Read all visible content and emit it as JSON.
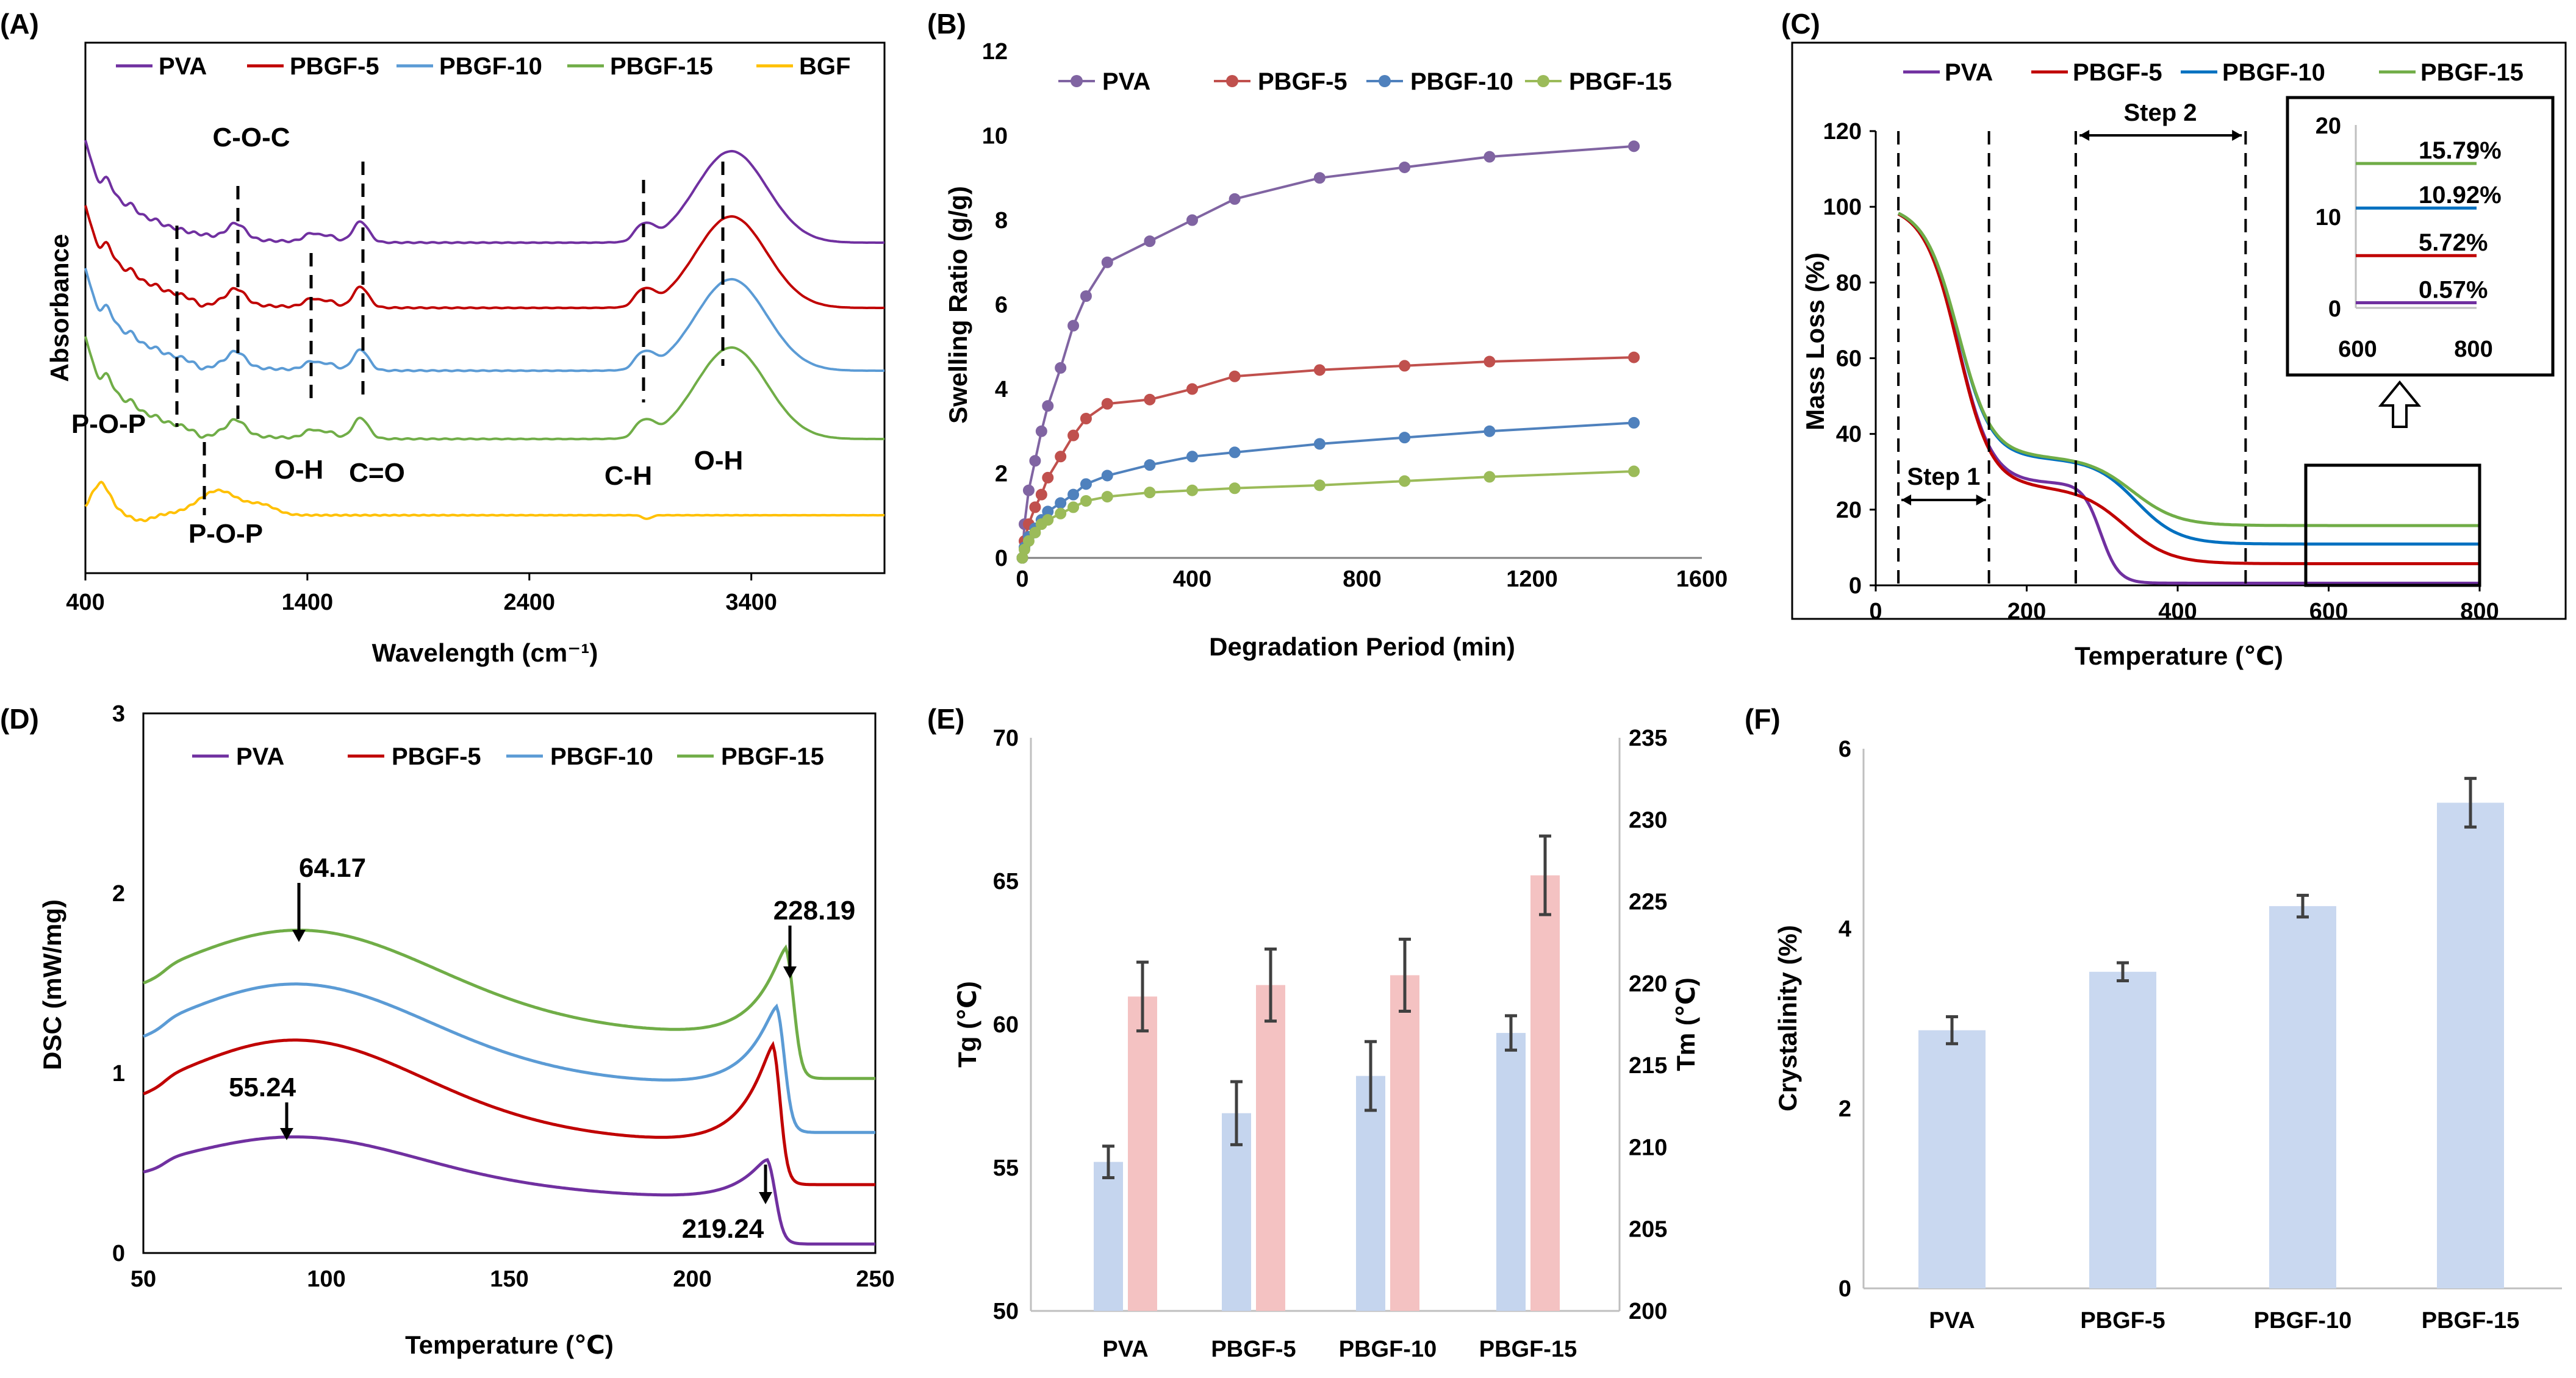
{
  "colors": {
    "PVA": "#7030A0",
    "PBGF-5": "#C00000",
    "PBGF-10": "#5B9BD5",
    "PBGF-15": "#70AD47",
    "BGF": "#FFC000",
    "B_PVA": "#8064A2",
    "B_PBGF-5": "#C0504D",
    "B_PBGF-10": "#4F81BD",
    "B_PBGF-15": "#9BBB59",
    "C_PBGF-10": "#0070C0",
    "bar_tg": "#C5D5EE",
    "bar_tm": "#F4C2C2",
    "bar_cr": "#C9D8F0"
  },
  "chart_data": [
    {
      "id": "A",
      "panel_label": "(A)",
      "type": "line",
      "title": "",
      "xlabel": "Wavelength (cm⁻¹)",
      "ylabel": "Absorbance",
      "xlim": [
        400,
        4000
      ],
      "xticks": [
        "400",
        "1400",
        "2400",
        "3400"
      ],
      "legend": [
        "PVA",
        "PBGF-5",
        "PBGF-10",
        "PBGF-15",
        "BGF"
      ],
      "annotations": [
        "C-O-C",
        "P-O-P",
        "O-H",
        "C=O",
        "C-H",
        "O-H",
        "P-O-P"
      ]
    },
    {
      "id": "B",
      "panel_label": "(B)",
      "type": "line",
      "title": "",
      "xlabel": "Degradation Period (min)",
      "ylabel": "Swelling Ratio (g/g)",
      "xlim": [
        0,
        1600
      ],
      "ylim": [
        0,
        12
      ],
      "xticks": [
        "0",
        "400",
        "800",
        "1200",
        "1600"
      ],
      "yticks": [
        "0",
        "2",
        "4",
        "6",
        "8",
        "10",
        "12"
      ],
      "x": [
        0,
        5,
        15,
        30,
        45,
        60,
        90,
        120,
        150,
        200,
        300,
        400,
        500,
        700,
        900,
        1100,
        1440
      ],
      "series": [
        {
          "name": "PVA",
          "values": [
            0,
            0.8,
            1.6,
            2.3,
            3.0,
            3.6,
            4.5,
            5.5,
            6.2,
            7.0,
            7.5,
            8.0,
            8.5,
            9.0,
            9.25,
            9.5,
            9.75
          ]
        },
        {
          "name": "PBGF-5",
          "values": [
            0,
            0.4,
            0.8,
            1.2,
            1.5,
            1.9,
            2.4,
            2.9,
            3.3,
            3.65,
            3.75,
            4.0,
            4.3,
            4.45,
            4.55,
            4.65,
            4.75
          ]
        },
        {
          "name": "PBGF-10",
          "values": [
            0,
            0.25,
            0.5,
            0.7,
            0.9,
            1.1,
            1.3,
            1.5,
            1.75,
            1.95,
            2.2,
            2.4,
            2.5,
            2.7,
            2.85,
            3.0,
            3.2
          ]
        },
        {
          "name": "PBGF-15",
          "values": [
            0,
            0.2,
            0.4,
            0.6,
            0.8,
            0.9,
            1.05,
            1.2,
            1.35,
            1.45,
            1.55,
            1.6,
            1.65,
            1.72,
            1.82,
            1.92,
            2.05
          ]
        }
      ]
    },
    {
      "id": "C",
      "panel_label": "(C)",
      "type": "line",
      "title": "",
      "xlabel": "Temperature (℃)",
      "ylabel": "Mass Loss (%)",
      "xlim": [
        0,
        800
      ],
      "ylim": [
        0,
        120
      ],
      "xticks": [
        "0",
        "200",
        "400",
        "600",
        "800"
      ],
      "yticks": [
        "0",
        "20",
        "40",
        "60",
        "80",
        "100",
        "120"
      ],
      "legend": [
        "PVA",
        "PBGF-5",
        "PBGF-10",
        "PBGF-15"
      ],
      "annotations": [
        "Step 1",
        "Step 2"
      ],
      "inset": {
        "xticks": [
          "600",
          "800"
        ],
        "yticks": [
          "0",
          "10",
          "20"
        ],
        "labels": [
          "15.79%",
          "10.92%",
          "5.72%",
          "0.57%"
        ],
        "values": [
          15.79,
          10.92,
          5.72,
          0.57
        ]
      }
    },
    {
      "id": "D",
      "panel_label": "(D)",
      "type": "line",
      "title": "",
      "xlabel": "Temperature (℃)",
      "ylabel": "DSC (mW/mg)",
      "xlim": [
        50,
        250
      ],
      "ylim": [
        0,
        3
      ],
      "xticks": [
        "50",
        "100",
        "150",
        "200",
        "250"
      ],
      "yticks": [
        "0",
        "1",
        "2",
        "3"
      ],
      "legend": [
        "PVA",
        "PBGF-5",
        "PBGF-10",
        "PBGF-15"
      ],
      "annotations": [
        "64.17",
        "228.19",
        "55.24",
        "219.24"
      ]
    },
    {
      "id": "E",
      "panel_label": "(E)",
      "type": "bar",
      "title": "",
      "ylabel": "Tg (℃)",
      "ylabel2": "Tm (℃)",
      "categories": [
        "PVA",
        "PBGF-5",
        "PBGF-10",
        "PBGF-15"
      ],
      "ylim": [
        50,
        70
      ],
      "ylim2": [
        200,
        235
      ],
      "yticks": [
        "50",
        "55",
        "60",
        "65",
        "70"
      ],
      "yticks2": [
        "200",
        "205",
        "210",
        "215",
        "220",
        "225",
        "230",
        "235"
      ],
      "series": [
        {
          "name": "Tg",
          "values": [
            55.2,
            56.9,
            58.2,
            59.7
          ],
          "err": [
            0.55,
            1.1,
            1.2,
            0.6
          ]
        },
        {
          "name": "Tm",
          "values": [
            219.2,
            219.9,
            220.5,
            226.6
          ],
          "err": [
            2.1,
            2.2,
            2.2,
            2.4
          ]
        }
      ]
    },
    {
      "id": "F",
      "panel_label": "(F)",
      "type": "bar",
      "title": "",
      "ylabel": "Crystalinity (%)",
      "categories": [
        "PVA",
        "PBGF-5",
        "PBGF-10",
        "PBGF-15"
      ],
      "ylim": [
        0,
        6
      ],
      "yticks": [
        "0",
        "2",
        "4",
        "6"
      ],
      "series": [
        {
          "name": "Crystalinity",
          "values": [
            2.87,
            3.52,
            4.25,
            5.4
          ],
          "err": [
            0.15,
            0.1,
            0.12,
            0.27
          ]
        }
      ]
    }
  ]
}
